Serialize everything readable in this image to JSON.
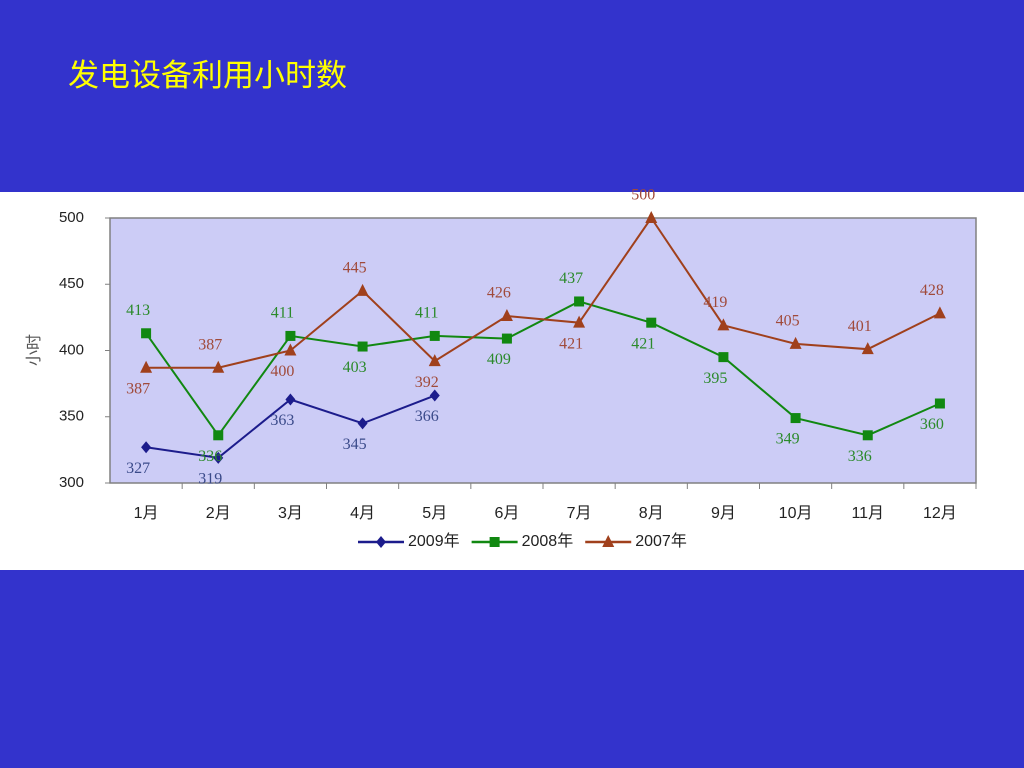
{
  "chart_data": {
    "type": "line",
    "title": "发电设备利用小时数",
    "ylabel": "小时",
    "categories": [
      "1月",
      "2月",
      "3月",
      "4月",
      "5月",
      "6月",
      "7月",
      "8月",
      "9月",
      "10月",
      "11月",
      "12月"
    ],
    "series": [
      {
        "name": "2009年",
        "color": "#1c1c8c",
        "label_color": "#3a4a8a",
        "marker": "diamond",
        "values": [
          327,
          319,
          363,
          345,
          366,
          null,
          null,
          null,
          null,
          null,
          null,
          null
        ]
      },
      {
        "name": "2008年",
        "color": "#118811",
        "label_color": "#2b8a2b",
        "marker": "square",
        "values": [
          413,
          336,
          411,
          403,
          411,
          409,
          437,
          421,
          395,
          349,
          336,
          360
        ]
      },
      {
        "name": "2007年",
        "color": "#a0401c",
        "label_color": "#a04a3a",
        "marker": "triangle",
        "values": [
          387,
          387,
          400,
          445,
          392,
          426,
          421,
          500,
          419,
          405,
          401,
          428
        ]
      }
    ],
    "ylim": [
      300,
      500
    ],
    "yticks": [
      300,
      350,
      400,
      450,
      500
    ],
    "legend": "bottom"
  }
}
